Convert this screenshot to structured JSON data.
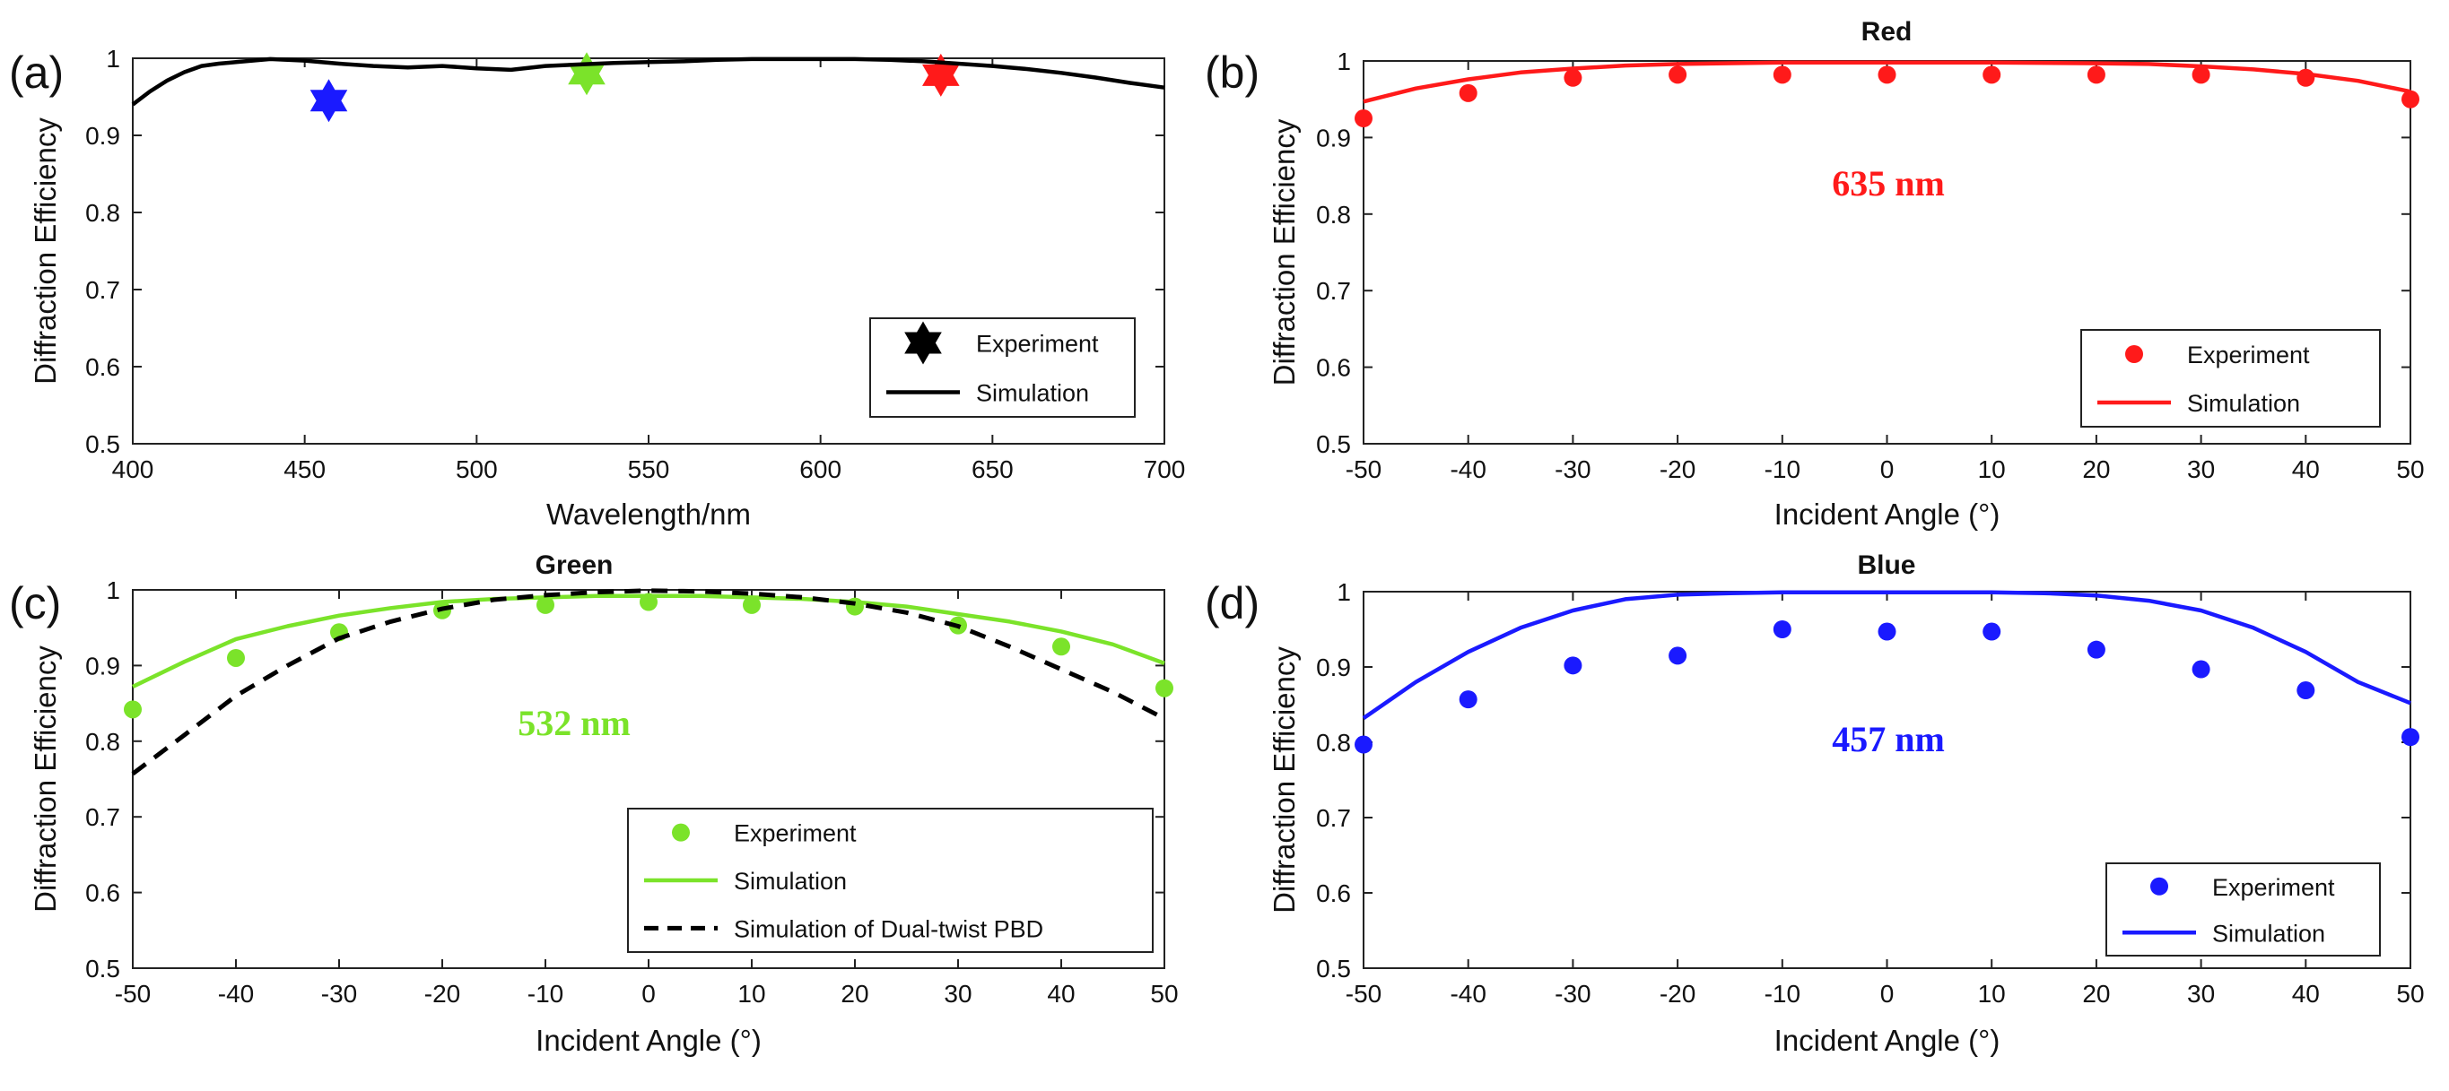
{
  "chart_data": [
    {
      "type": "line",
      "panel": "(a)",
      "title": "",
      "xlabel": "Wavelength/nm",
      "ylabel": "Diffraction Efficiency",
      "xlim": [
        400,
        700
      ],
      "ylim": [
        0.5,
        1
      ],
      "xticks": [
        400,
        450,
        500,
        550,
        600,
        650,
        700
      ],
      "yticks": [
        0.5,
        0.6,
        0.7,
        0.8,
        0.9,
        1
      ],
      "ytick_labels": [
        "0.5",
        "0.6",
        "0.7",
        "0.8",
        "0.9",
        "1"
      ],
      "legend_position": "bottom-right",
      "series": [
        {
          "name": "Experiment",
          "kind": "star",
          "color": "#000000",
          "points": [
            {
              "x": 457,
              "y": 0.945,
              "color": "#1a1aff"
            },
            {
              "x": 532,
              "y": 0.98,
              "color": "#7be32a"
            },
            {
              "x": 635,
              "y": 0.978,
              "color": "#ff1a1a"
            }
          ]
        },
        {
          "name": "Simulation",
          "kind": "line",
          "color": "#000000",
          "x": [
            400,
            405,
            410,
            415,
            420,
            425,
            430,
            440,
            450,
            460,
            470,
            480,
            490,
            500,
            510,
            520,
            530,
            540,
            550,
            560,
            570,
            580,
            590,
            600,
            610,
            620,
            630,
            640,
            650,
            660,
            670,
            680,
            690,
            700
          ],
          "y": [
            0.94,
            0.957,
            0.971,
            0.982,
            0.99,
            0.993,
            0.995,
            0.999,
            0.997,
            0.993,
            0.99,
            0.988,
            0.99,
            0.987,
            0.985,
            0.99,
            0.992,
            0.994,
            0.995,
            0.996,
            0.998,
            0.999,
            0.999,
            0.999,
            0.999,
            0.998,
            0.996,
            0.993,
            0.99,
            0.986,
            0.981,
            0.975,
            0.968,
            0.962
          ]
        }
      ]
    },
    {
      "type": "line",
      "panel": "(b)",
      "title": "Red",
      "annotation": {
        "text": "635 nm",
        "color": "#ff1a1a"
      },
      "xlabel": "Incident Angle (°)",
      "ylabel": "Diffraction Efficiency",
      "xlim": [
        -50,
        50
      ],
      "ylim": [
        0.5,
        1
      ],
      "xticks": [
        -50,
        -40,
        -30,
        -20,
        -10,
        0,
        10,
        20,
        30,
        40,
        50
      ],
      "yticks": [
        0.5,
        0.6,
        0.7,
        0.8,
        0.9,
        1
      ],
      "ytick_labels": [
        "0.5",
        "0.6",
        "0.7",
        "0.8",
        "0.9",
        "1"
      ],
      "legend_position": "bottom-right",
      "series": [
        {
          "name": "Experiment",
          "kind": "dot",
          "color": "#ff1a1a",
          "x": [
            -50,
            -40,
            -30,
            -20,
            -10,
            0,
            10,
            20,
            30,
            40,
            50
          ],
          "y": [
            0.925,
            0.958,
            0.978,
            0.982,
            0.982,
            0.982,
            0.982,
            0.982,
            0.982,
            0.978,
            0.95
          ]
        },
        {
          "name": "Simulation",
          "kind": "line",
          "color": "#ff1a1a",
          "x": [
            -50,
            -45,
            -40,
            -35,
            -30,
            -25,
            -20,
            -10,
            0,
            10,
            20,
            25,
            30,
            35,
            40,
            45,
            50
          ],
          "y": [
            0.947,
            0.964,
            0.976,
            0.985,
            0.99,
            0.994,
            0.996,
            0.998,
            0.998,
            0.998,
            0.997,
            0.996,
            0.993,
            0.989,
            0.983,
            0.974,
            0.96
          ]
        }
      ]
    },
    {
      "type": "line",
      "panel": "(c)",
      "title": "Green",
      "annotation": {
        "text": "532 nm",
        "color": "#7be32a"
      },
      "xlabel": "Incident Angle (°)",
      "ylabel": "Diffraction Efficiency",
      "xlim": [
        -50,
        50
      ],
      "ylim": [
        0.5,
        1
      ],
      "xticks": [
        -50,
        -40,
        -30,
        -20,
        -10,
        0,
        10,
        20,
        30,
        40,
        50
      ],
      "yticks": [
        0.5,
        0.6,
        0.7,
        0.8,
        0.9,
        1
      ],
      "ytick_labels": [
        "0.5",
        "0.6",
        "0.7",
        "0.8",
        "0.9",
        "1"
      ],
      "legend_position": "bottom-right",
      "series": [
        {
          "name": "Experiment",
          "kind": "dot",
          "color": "#7be32a",
          "x": [
            -50,
            -40,
            -30,
            -20,
            -10,
            0,
            10,
            20,
            30,
            40,
            50
          ],
          "y": [
            0.842,
            0.91,
            0.944,
            0.973,
            0.98,
            0.984,
            0.98,
            0.978,
            0.953,
            0.925,
            0.87
          ]
        },
        {
          "name": "Simulation",
          "kind": "line",
          "color": "#7be32a",
          "x": [
            -50,
            -45,
            -40,
            -35,
            -30,
            -25,
            -20,
            -15,
            -10,
            -5,
            0,
            5,
            10,
            15,
            20,
            25,
            30,
            35,
            40,
            45,
            50
          ],
          "y": [
            0.872,
            0.905,
            0.935,
            0.952,
            0.966,
            0.976,
            0.984,
            0.988,
            0.99,
            0.992,
            0.992,
            0.992,
            0.99,
            0.988,
            0.984,
            0.978,
            0.968,
            0.958,
            0.945,
            0.928,
            0.903
          ]
        },
        {
          "name": "Simulation of Dual-twist PBD",
          "kind": "dash",
          "color": "#000000",
          "x": [
            -50,
            -45,
            -40,
            -35,
            -30,
            -25,
            -20,
            -15,
            -10,
            -5,
            0,
            5,
            10,
            15,
            20,
            25,
            30,
            35,
            40,
            45,
            50
          ],
          "y": [
            0.757,
            0.808,
            0.86,
            0.9,
            0.936,
            0.958,
            0.975,
            0.987,
            0.993,
            0.997,
            0.999,
            0.998,
            0.995,
            0.99,
            0.982,
            0.97,
            0.952,
            0.925,
            0.895,
            0.865,
            0.83
          ]
        }
      ]
    },
    {
      "type": "line",
      "panel": "(d)",
      "title": "Blue",
      "annotation": {
        "text": "457 nm",
        "color": "#1a1aff"
      },
      "xlabel": "Incident Angle (°)",
      "ylabel": "Diffraction Efficiency",
      "xlim": [
        -50,
        50
      ],
      "ylim": [
        0.5,
        1
      ],
      "xticks": [
        -50,
        -40,
        -30,
        -20,
        -10,
        0,
        10,
        20,
        30,
        40,
        50
      ],
      "yticks": [
        0.5,
        0.6,
        0.7,
        0.8,
        0.9,
        1
      ],
      "ytick_labels": [
        "0.5",
        "0.6",
        "0.7",
        "0.8",
        "0.9",
        "1"
      ],
      "legend_position": "bottom-right",
      "series": [
        {
          "name": "Experiment",
          "kind": "dot",
          "color": "#1a1aff",
          "x": [
            -50,
            -40,
            -30,
            -20,
            -10,
            0,
            10,
            20,
            30,
            40,
            50
          ],
          "y": [
            0.797,
            0.857,
            0.902,
            0.915,
            0.95,
            0.947,
            0.947,
            0.923,
            0.897,
            0.869,
            0.807
          ]
        },
        {
          "name": "Simulation",
          "kind": "line",
          "color": "#1a1aff",
          "x": [
            -50,
            -45,
            -40,
            -35,
            -30,
            -25,
            -20,
            -15,
            -10,
            -5,
            0,
            5,
            10,
            15,
            20,
            25,
            30,
            35,
            40,
            45,
            50
          ],
          "y": [
            0.832,
            0.88,
            0.92,
            0.952,
            0.975,
            0.99,
            0.996,
            0.998,
            0.999,
            0.999,
            0.999,
            0.999,
            0.999,
            0.998,
            0.995,
            0.988,
            0.975,
            0.952,
            0.92,
            0.88,
            0.852
          ]
        }
      ]
    }
  ]
}
